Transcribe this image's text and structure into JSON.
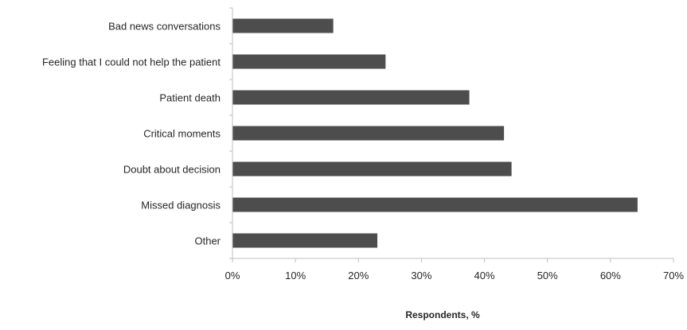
{
  "chart_data": {
    "type": "bar",
    "orientation": "horizontal",
    "categories": [
      "Bad news conversations",
      "Feeling that I could not help the patient",
      "Patient death",
      "Critical moments",
      "Doubt about decision",
      "Missed diagnosis",
      "Other"
    ],
    "values": [
      16,
      24.3,
      37.6,
      43.1,
      44.3,
      64.3,
      23
    ],
    "title": "",
    "xlabel": "Respondents, %",
    "ylabel": "",
    "xlim": [
      0,
      70
    ],
    "xticks": [
      0,
      10,
      20,
      30,
      40,
      50,
      60,
      70
    ],
    "xtick_labels": [
      "0%",
      "10%",
      "20%",
      "30%",
      "40%",
      "50%",
      "60%",
      "70%"
    ],
    "bar_color": "#4d4d4d",
    "axis_color": "#bfbfbf",
    "grid": false,
    "legend": "none"
  }
}
